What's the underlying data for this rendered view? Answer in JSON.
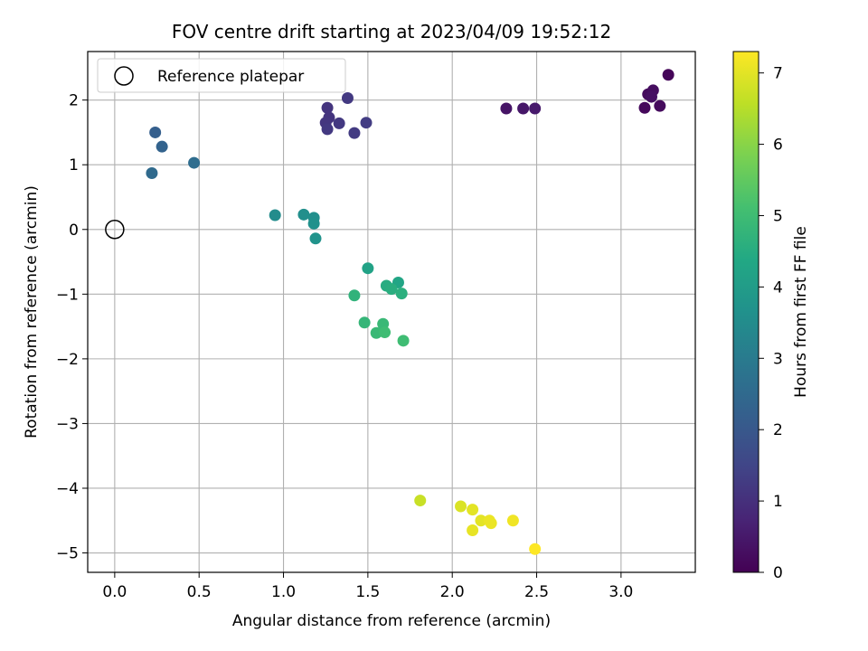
{
  "chart_data": {
    "type": "scatter",
    "title": "FOV centre drift starting at 2023/04/09 19:52:12",
    "xlabel": "Angular distance from reference (arcmin)",
    "ylabel": "Rotation from reference (arcmin)",
    "xlim": [
      -0.16,
      3.44
    ],
    "ylim": [
      -5.3,
      2.75
    ],
    "xticks": [
      "0.0",
      "0.5",
      "1.0",
      "1.5",
      "2.0",
      "2.5",
      "3.0"
    ],
    "xtick_values": [
      0,
      0.5,
      1.0,
      1.5,
      2.0,
      2.5,
      3.0
    ],
    "yticks": [
      "2",
      "1",
      "0",
      "−1",
      "−2",
      "−3",
      "−4",
      "−5"
    ],
    "ytick_values": [
      2,
      1,
      0,
      -1,
      -2,
      -3,
      -4,
      -5
    ],
    "grid": true,
    "legend": {
      "position": "top-left",
      "entries": [
        "Reference platepar"
      ]
    },
    "reference_point": {
      "x": 0.0,
      "y": 0.0
    },
    "colorbar": {
      "label": "Hours from first FF file",
      "range": [
        0,
        7.3
      ],
      "ticks": [
        "0",
        "1",
        "2",
        "3",
        "4",
        "5",
        "6",
        "7"
      ],
      "tick_values": [
        0,
        1,
        2,
        3,
        4,
        5,
        6,
        7
      ],
      "colormap": "viridis"
    },
    "points": [
      {
        "x": 3.28,
        "y": 2.39,
        "h": 0.1
      },
      {
        "x": 3.16,
        "y": 2.09,
        "h": 0.2
      },
      {
        "x": 3.19,
        "y": 2.15,
        "h": 0.25
      },
      {
        "x": 3.18,
        "y": 2.05,
        "h": 0.3
      },
      {
        "x": 3.14,
        "y": 1.88,
        "h": 0.15
      },
      {
        "x": 3.23,
        "y": 1.91,
        "h": 0.2
      },
      {
        "x": 2.32,
        "y": 1.87,
        "h": 0.4
      },
      {
        "x": 2.42,
        "y": 1.87,
        "h": 0.45
      },
      {
        "x": 2.49,
        "y": 1.87,
        "h": 0.5
      },
      {
        "x": 1.38,
        "y": 2.03,
        "h": 1.2
      },
      {
        "x": 1.26,
        "y": 1.88,
        "h": 1.1
      },
      {
        "x": 1.27,
        "y": 1.73,
        "h": 1.1
      },
      {
        "x": 1.25,
        "y": 1.65,
        "h": 1.15
      },
      {
        "x": 1.26,
        "y": 1.55,
        "h": 1.2
      },
      {
        "x": 1.33,
        "y": 1.64,
        "h": 1.2
      },
      {
        "x": 1.42,
        "y": 1.49,
        "h": 1.25
      },
      {
        "x": 1.49,
        "y": 1.65,
        "h": 1.3
      },
      {
        "x": 0.24,
        "y": 1.5,
        "h": 2.2
      },
      {
        "x": 0.28,
        "y": 1.28,
        "h": 2.3
      },
      {
        "x": 0.22,
        "y": 0.87,
        "h": 2.5
      },
      {
        "x": 0.47,
        "y": 1.03,
        "h": 2.6
      },
      {
        "x": 0.95,
        "y": 0.22,
        "h": 3.5
      },
      {
        "x": 1.12,
        "y": 0.23,
        "h": 3.6
      },
      {
        "x": 1.18,
        "y": 0.18,
        "h": 3.6
      },
      {
        "x": 1.18,
        "y": 0.09,
        "h": 3.65
      },
      {
        "x": 1.19,
        "y": -0.14,
        "h": 3.7
      },
      {
        "x": 1.5,
        "y": -0.6,
        "h": 4.2
      },
      {
        "x": 1.68,
        "y": -0.82,
        "h": 4.3
      },
      {
        "x": 1.61,
        "y": -0.87,
        "h": 4.5
      },
      {
        "x": 1.64,
        "y": -0.92,
        "h": 4.55
      },
      {
        "x": 1.7,
        "y": -0.99,
        "h": 4.6
      },
      {
        "x": 1.42,
        "y": -1.02,
        "h": 4.7
      },
      {
        "x": 1.48,
        "y": -1.44,
        "h": 4.8
      },
      {
        "x": 1.59,
        "y": -1.46,
        "h": 4.9
      },
      {
        "x": 1.55,
        "y": -1.6,
        "h": 4.9
      },
      {
        "x": 1.6,
        "y": -1.59,
        "h": 5.0
      },
      {
        "x": 1.71,
        "y": -1.72,
        "h": 5.0
      },
      {
        "x": 1.81,
        "y": -4.19,
        "h": 6.7
      },
      {
        "x": 2.05,
        "y": -4.28,
        "h": 6.9
      },
      {
        "x": 2.12,
        "y": -4.33,
        "h": 7.0
      },
      {
        "x": 2.17,
        "y": -4.5,
        "h": 7.0
      },
      {
        "x": 2.22,
        "y": -4.5,
        "h": 7.1
      },
      {
        "x": 2.23,
        "y": -4.54,
        "h": 7.1
      },
      {
        "x": 2.12,
        "y": -4.65,
        "h": 7.05
      },
      {
        "x": 2.36,
        "y": -4.5,
        "h": 7.15
      },
      {
        "x": 2.49,
        "y": -4.94,
        "h": 7.3
      }
    ]
  }
}
